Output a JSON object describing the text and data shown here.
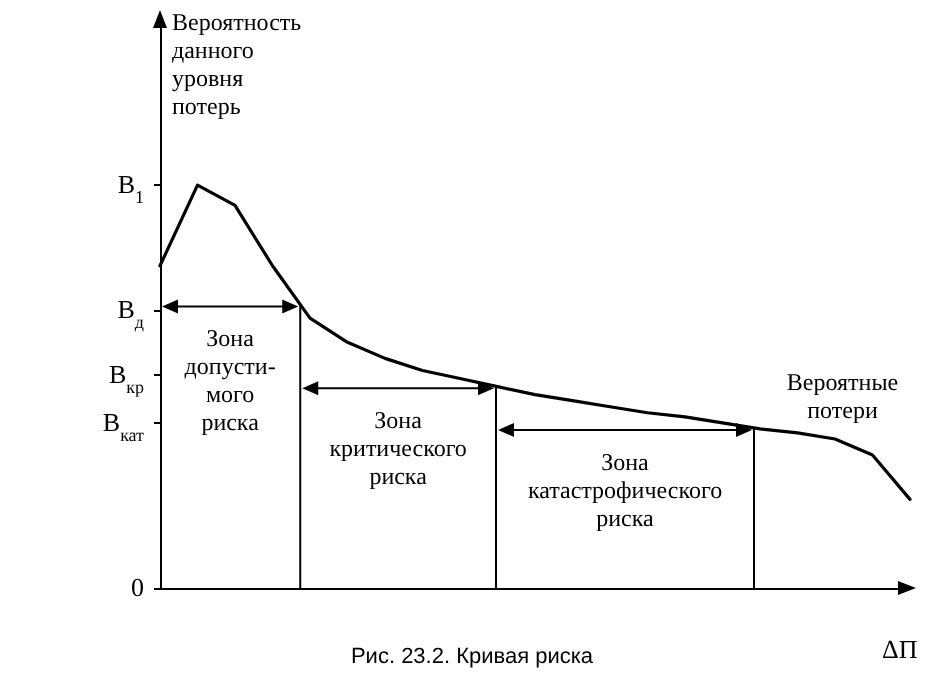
{
  "chart_data": {
    "type": "line",
    "title": "Рис. 23.2. Кривая риска",
    "ylabel": "Вероятность данного уровня потерь",
    "xlabel": "ΔП",
    "categories": [
      null,
      null,
      null,
      null,
      null,
      null,
      null,
      null,
      null,
      null,
      null,
      null,
      null,
      null,
      null,
      null,
      null,
      null,
      null,
      null,
      null
    ],
    "series": [
      {
        "color": "#000000",
        "values": [
          0.8,
          1.0,
          0.95,
          0.8,
          0.67,
          0.61,
          0.57,
          0.54,
          0.52,
          0.5,
          0.48,
          0.465,
          0.45,
          0.435,
          0.425,
          0.41,
          0.395,
          0.385,
          0.37,
          0.33,
          0.22
        ]
      }
    ],
    "ylim": [
      0,
      1.42
    ],
    "yticks": [
      0,
      {
        "value": 0.41,
        "label": "В$_{кат}$"
      },
      {
        "value": 0.53,
        "label": "В$_{кр}$"
      },
      {
        "value": 0.69,
        "label": "В$_{д}$"
      },
      {
        "value": 1,
        "label": "В$_{1}$"
      }
    ],
    "tick_labels": "y",
    "annotations": [
      "Зона\nдопусти-\nмого\nриска",
      "Зона\nкритического\nриска",
      "Зона\nкатастрофического\nриска",
      "Вероятные\nпотери"
    ]
  }
}
